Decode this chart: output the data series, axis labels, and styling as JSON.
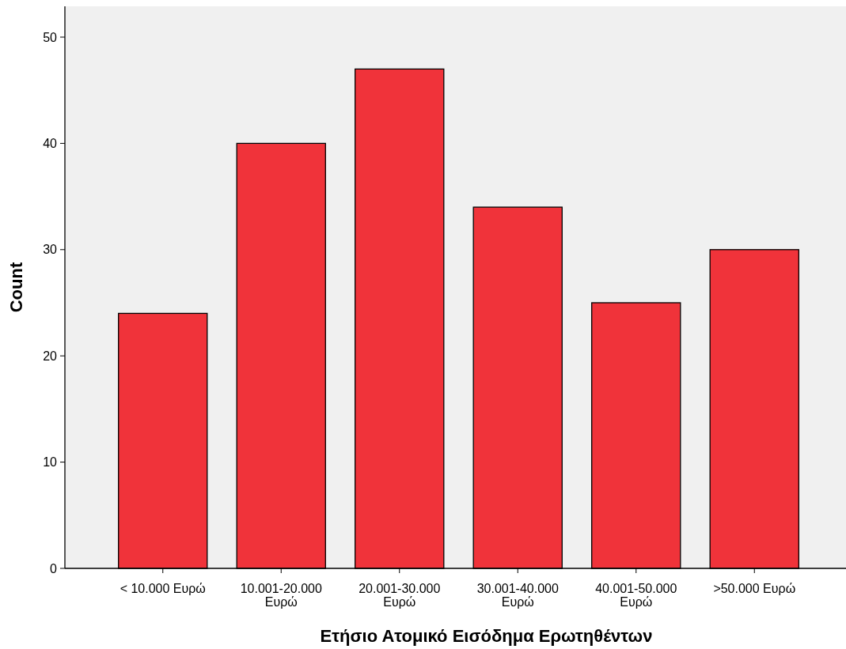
{
  "chart_data": {
    "type": "bar",
    "xlabel": "Ετήσιο Ατομικό Εισόδημα Ερωτηθέντων",
    "ylabel": "Count",
    "categories": [
      "< 10.000 Ευρώ",
      "10.001-20.000 Ευρώ",
      "20.001-30.000 Ευρώ",
      "30.001-40.000 Ευρώ",
      "40.001-50.000 Ευρώ",
      ">50.000 Ευρώ"
    ],
    "values": [
      24,
      40,
      47,
      34,
      25,
      30
    ],
    "color": "#f0333a",
    "ylim": [
      0,
      52.9
    ],
    "yticks": [
      0,
      10,
      20,
      30,
      40,
      50
    ],
    "grid": false
  }
}
